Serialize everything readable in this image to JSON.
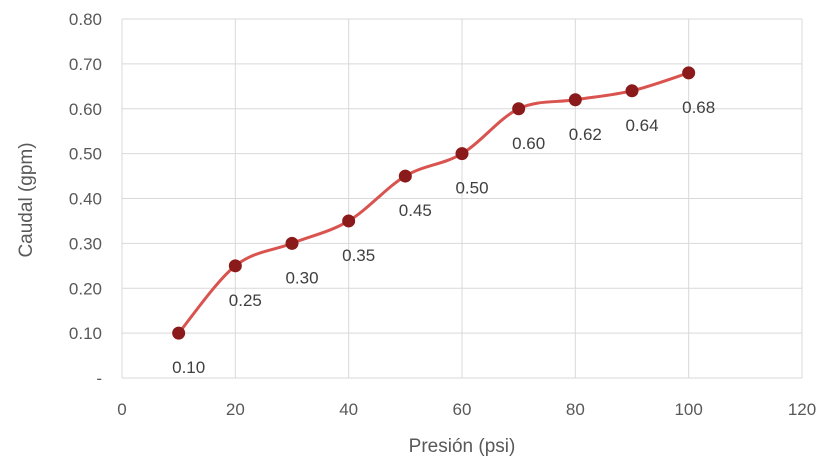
{
  "chart_data": {
    "type": "line",
    "smooth": true,
    "xlabel": "Presión (psi)",
    "ylabel": "Caudal (gpm)",
    "xlim": [
      0,
      120
    ],
    "ylim": [
      0,
      0.8
    ],
    "x_ticks": [
      0,
      20,
      40,
      60,
      80,
      100,
      120
    ],
    "x_tick_labels": [
      "0",
      "20",
      "40",
      "60",
      "80",
      "100",
      "120"
    ],
    "y_ticks": [
      0,
      0.1,
      0.2,
      0.3,
      0.4,
      0.5,
      0.6,
      0.7,
      0.8
    ],
    "y_tick_labels": [
      "-",
      "0.10",
      "0.20",
      "0.30",
      "0.40",
      "0.50",
      "0.60",
      "0.70",
      "0.80"
    ],
    "grid": true,
    "legend": "none",
    "series": [
      {
        "x": [
          10,
          20,
          30,
          40,
          50,
          60,
          70,
          80,
          90,
          100
        ],
        "values": [
          0.1,
          0.25,
          0.3,
          0.35,
          0.45,
          0.5,
          0.6,
          0.62,
          0.64,
          0.68
        ],
        "data_labels": [
          "0.10",
          "0.25",
          "0.30",
          "0.35",
          "0.45",
          "0.50",
          "0.60",
          "0.62",
          "0.64",
          "0.68"
        ],
        "line_color": "#d9534f",
        "marker_color": "#8b1a1a"
      }
    ]
  }
}
